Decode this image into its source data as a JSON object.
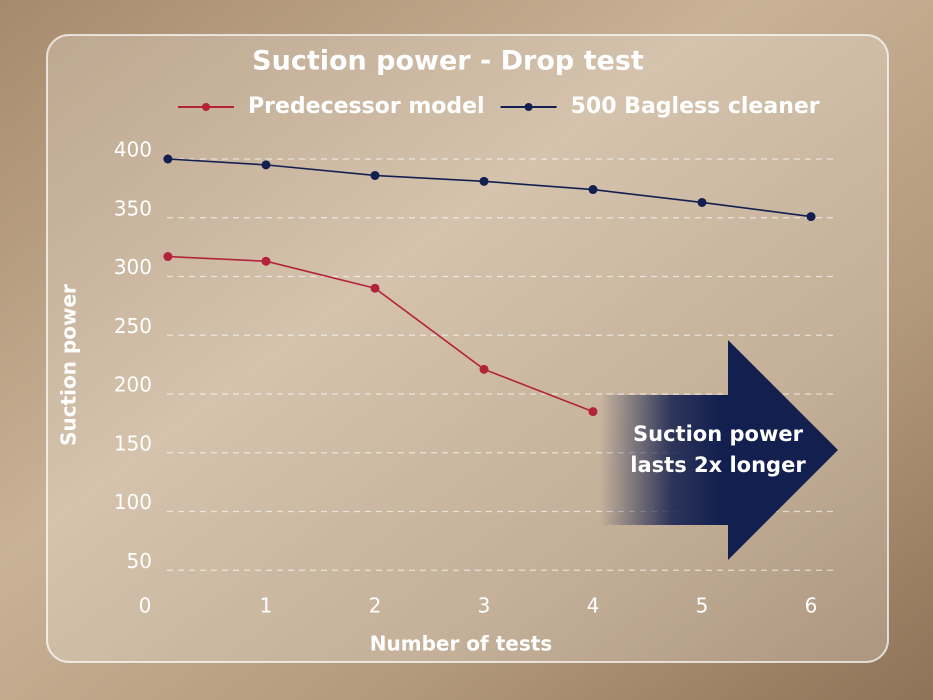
{
  "chart_data": {
    "type": "line",
    "title": "Suction power - Drop test",
    "x_label": "Number of tests",
    "y_label": "Suction power",
    "annotation": [
      "Suction power",
      "lasts 2x longer"
    ],
    "series": [
      {
        "name": "Predecessor model",
        "color": "#b3243b",
        "x": [
          0.1,
          1,
          2,
          3,
          4
        ],
        "values": [
          317,
          313,
          290,
          221,
          185
        ]
      },
      {
        "name": "500 Bagless cleaner",
        "color": "#13204f",
        "x": [
          0.1,
          1,
          2,
          3,
          4,
          5,
          6
        ],
        "values": [
          400,
          395,
          386,
          381,
          374,
          363,
          351
        ]
      }
    ],
    "xlim": [
      -0.1,
      6.3
    ],
    "xticks": [
      0,
      1,
      2,
      3,
      4,
      5,
      6
    ],
    "ylim": [
      0,
      400
    ],
    "yticks": [
      50,
      100,
      150,
      200,
      250,
      300,
      350,
      400
    ],
    "grid": true,
    "legend": "top"
  }
}
